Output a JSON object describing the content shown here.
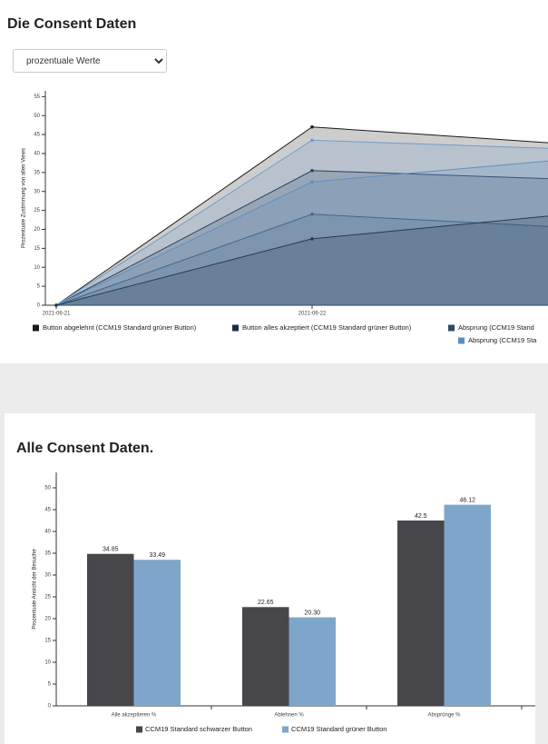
{
  "page": {
    "title": "Die Consent Daten",
    "select": "prozentuale Werte"
  },
  "chart_data": [
    {
      "type": "area",
      "y_label": "Prozentuale Zustimmung von allen Views",
      "categories": [
        "2021-06-21",
        "2021-06-22",
        null
      ],
      "ylim": [
        0,
        57
      ],
      "yticks": [
        0,
        5,
        10,
        15,
        20,
        25,
        30,
        35,
        40,
        45,
        50,
        55
      ],
      "series": [
        {
          "name": "Button abgelehnt (CCM19 Standard grüner Button)",
          "color": "#1a1a1a",
          "values": [
            0,
            47,
            42.5
          ]
        },
        {
          "name": "Button alles akzeptiert (CCM19 Standard grüner Button)",
          "color": "#1c2b45",
          "values": [
            0,
            35.5,
            33.2
          ]
        },
        {
          "name": "Absprung (CCM19 Stand",
          "color": "#2f4a66",
          "values": [
            0,
            24,
            20.5
          ]
        },
        {
          "name": "Absprung (CCM19 Sta",
          "color": "#5a8dbf",
          "values": [
            0,
            32.5,
            38.5
          ]
        },
        {
          "color": "#6f9ccc",
          "values": [
            0,
            43.5,
            41.2
          ]
        },
        {
          "color": "#243a57",
          "values": [
            0,
            17.5,
            24
          ]
        }
      ]
    },
    {
      "type": "bar",
      "title": "Alle Consent Daten.",
      "y_label": "Prozentuale Ansicht der Besuche",
      "categories": [
        "Alle akzeptieren %",
        "Ablehnen %",
        "Absprünge %"
      ],
      "ylim": [
        0,
        52
      ],
      "yticks": [
        0,
        5,
        10,
        15,
        20,
        25,
        30,
        35,
        40,
        45,
        50
      ],
      "series": [
        {
          "name": "CCM19 Standard schwarzer Button",
          "color": "#47474b",
          "values": [
            34.85,
            22.65,
            42.5
          ],
          "value_labels": [
            "34.85",
            "22.65",
            "42.5"
          ]
        },
        {
          "name": "CCM19 Standard grüner Button",
          "color": "#7ea6ca",
          "values": [
            33.49,
            20.3,
            46.12
          ],
          "value_labels": [
            "33.49",
            "20.30",
            "46.12"
          ]
        }
      ]
    }
  ]
}
